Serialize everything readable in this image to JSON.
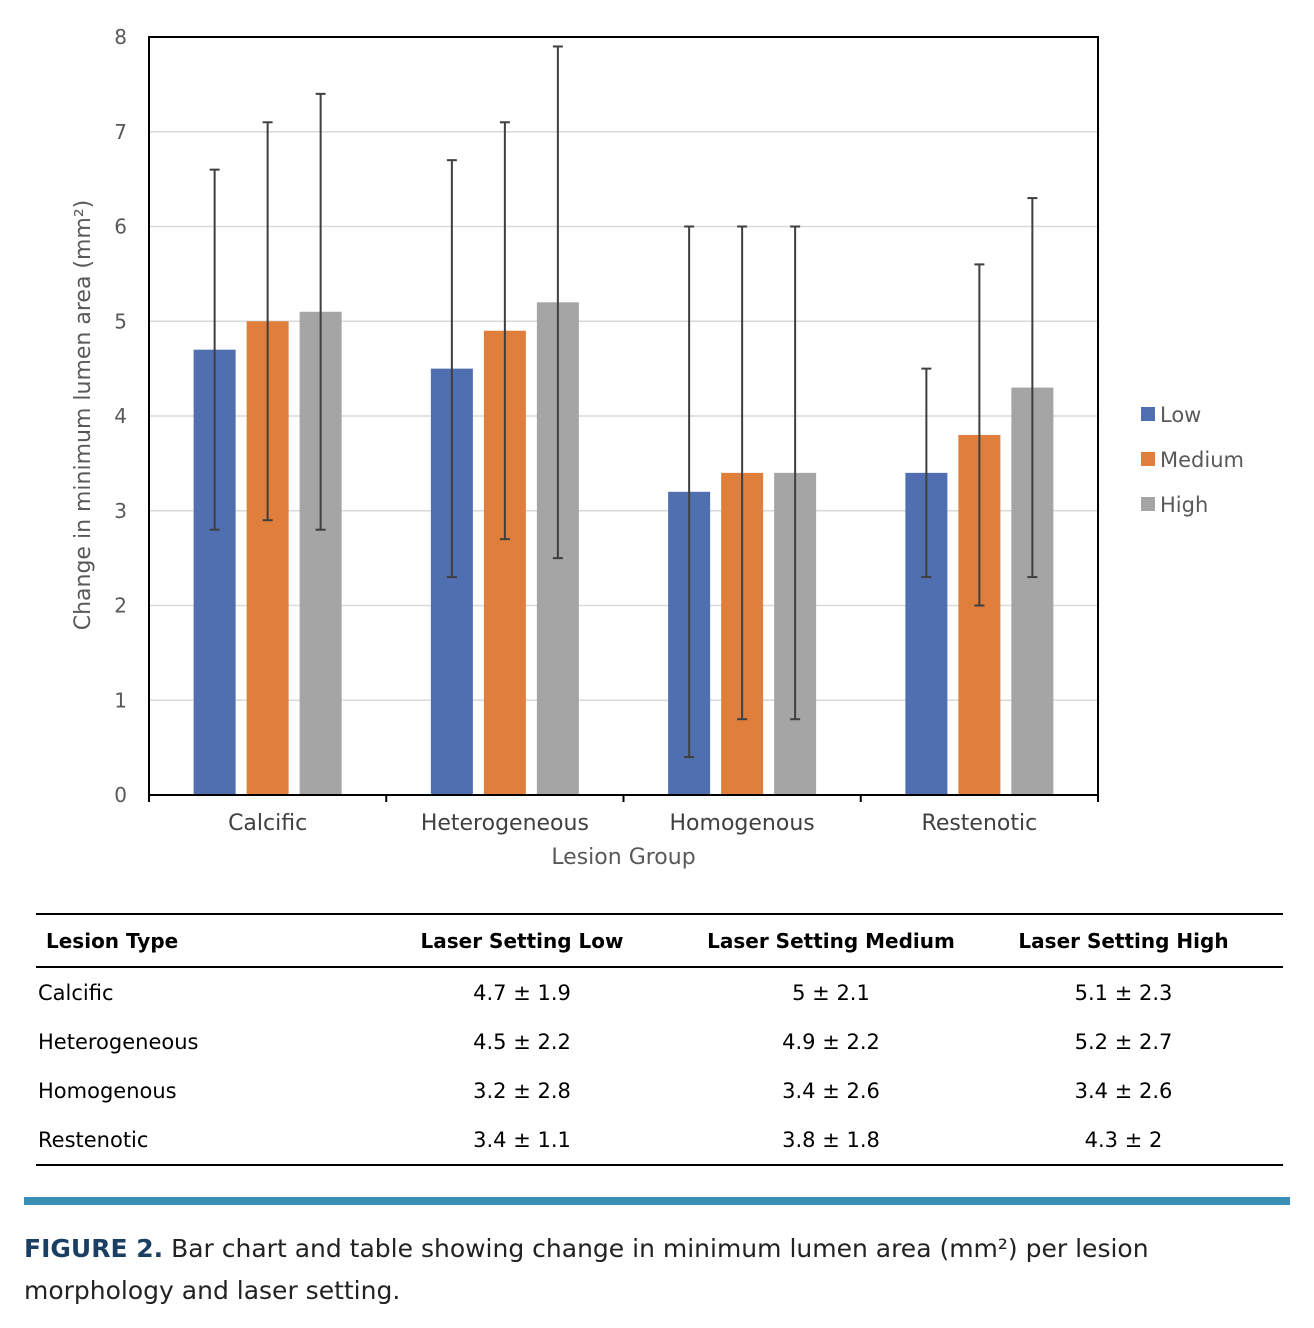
{
  "chart_data": {
    "type": "bar",
    "categories": [
      "Calcific",
      "Heterogeneous",
      "Homogenous",
      "Restenotic"
    ],
    "series": [
      {
        "name": "Low",
        "color": "#4f6fb1",
        "values": [
          4.7,
          4.5,
          3.2,
          3.4
        ],
        "errors": [
          1.9,
          2.2,
          2.8,
          1.1
        ]
      },
      {
        "name": "Medium",
        "color": "#e07f3c",
        "values": [
          5.0,
          4.9,
          3.4,
          3.8
        ],
        "errors": [
          2.1,
          2.2,
          2.6,
          1.8
        ]
      },
      {
        "name": "High",
        "color": "#a5a5a5",
        "values": [
          5.1,
          5.2,
          3.4,
          4.3
        ],
        "errors": [
          2.3,
          2.7,
          2.6,
          2.0
        ]
      }
    ],
    "xlabel": "Lesion Group",
    "ylabel": "Change in minimum lumen area (mm²)",
    "ylim": [
      0,
      8
    ],
    "yticks": [
      "0",
      "1",
      "2",
      "3",
      "4",
      "5",
      "6",
      "7",
      "8"
    ],
    "grid": true,
    "legend_position": "right"
  },
  "table": {
    "headers": [
      "Lesion Type",
      "Laser Setting Low",
      "Laser Setting Medium",
      "Laser Setting High"
    ],
    "rows": [
      [
        "Calcific",
        "4.7 ± 1.9",
        "5 ± 2.1",
        "5.1 ± 2.3"
      ],
      [
        "Heterogeneous",
        "4.5 ± 2.2",
        "4.9 ± 2.2",
        "5.2 ± 2.7"
      ],
      [
        "Homogenous",
        "3.2 ± 2.8",
        "3.4 ± 2.6",
        "3.4 ± 2.6"
      ],
      [
        "Restenotic",
        "3.4 ± 1.1",
        "3.8 ± 1.8",
        "4.3 ± 2"
      ]
    ]
  },
  "caption": {
    "label": "FIGURE 2.",
    "text": " Bar chart and table showing change in minimum lumen area (mm²) per lesion morphology and laser setting."
  }
}
